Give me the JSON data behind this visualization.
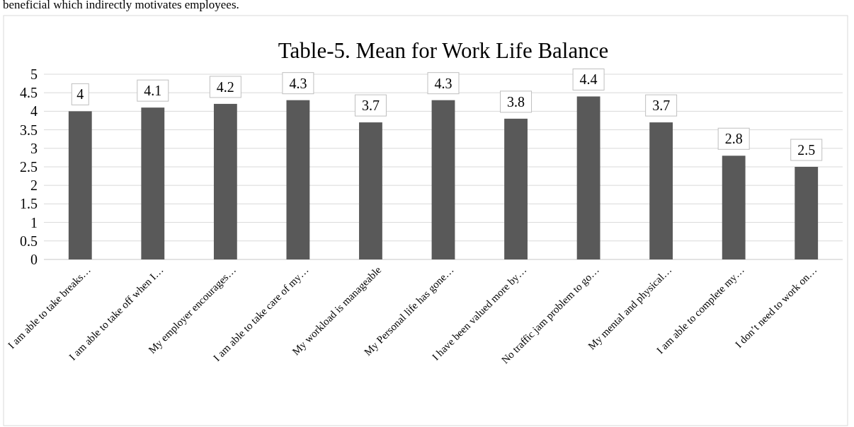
{
  "chart_data": {
    "type": "bar",
    "title": "Table-5. Mean for Work Life Balance",
    "categories": [
      "I am able to take breaks…",
      "I am able to take off when I…",
      "My employer encourages…",
      "I am able to take care of my…",
      "My workload is manageable",
      "My Personal life has gone…",
      "I have been valued more by…",
      "No traffic jam problem to go…",
      "My mental and physical…",
      "I am able to complete my…",
      "I don’t need to work on…"
    ],
    "values": [
      4,
      4.1,
      4.2,
      4.3,
      3.7,
      4.3,
      3.8,
      4.4,
      3.7,
      2.8,
      2.5
    ],
    "color": "#595959",
    "ylim": [
      0,
      5
    ],
    "yticks": [
      0,
      0.5,
      1,
      1.5,
      2,
      2.5,
      3,
      3.5,
      4,
      4.5,
      5
    ],
    "grid": "y",
    "data_labels": true,
    "annotations": [
      "beneficial which indirectly motivates employees."
    ]
  }
}
